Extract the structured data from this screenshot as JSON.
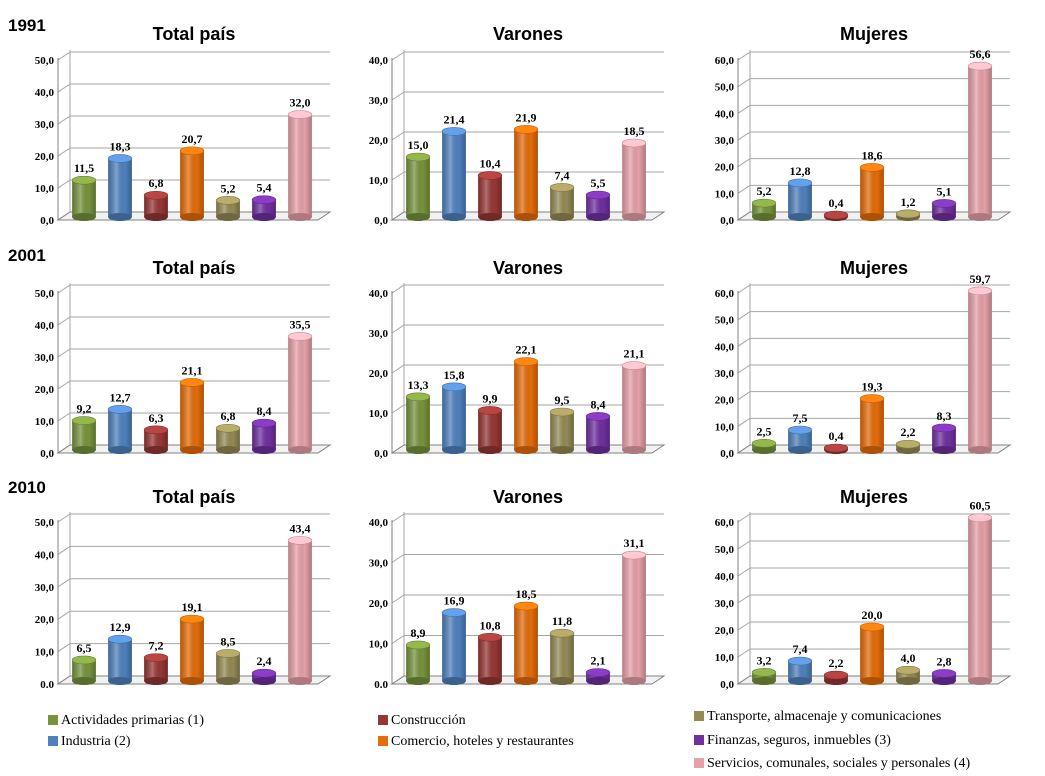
{
  "years": [
    "1991",
    "2001",
    "2010"
  ],
  "colors": {
    "Actividades primarias (1)": "#77933c",
    "Industria (2)": "#4f81bd",
    "Construcción": "#953735",
    "Comercio, hoteles y restaurantes": "#e46c0a",
    "Transporte, almacenaje y comunicaciones": "#948a54",
    "Finanzas, seguros, inmuebles (3)": "#7030a0",
    "Servicios, comunales, sociales y personales (4)": "#e6a0a8"
  },
  "legend": [
    {
      "label": "Actividades primarias  (1)",
      "color": "#77933c"
    },
    {
      "label": "Industria (2)",
      "color": "#4f81bd"
    },
    {
      "label": "Construcción",
      "color": "#953735"
    },
    {
      "label": "Comercio, hoteles y restaurantes",
      "color": "#e46c0a"
    },
    {
      "label": "Transporte, almacenaje y comunicaciones",
      "color": "#948a54"
    },
    {
      "label": "Finanzas, seguros, inmuebles (3)",
      "color": "#7030a0"
    },
    {
      "label": "Servicios, comunales, sociales y personales (4)",
      "color": "#e6a0a8"
    }
  ],
  "chart_data": [
    {
      "type": "bar",
      "year": "1991",
      "title": "Total país",
      "ylim": [
        0,
        50
      ],
      "yticks": [
        "0,0",
        "10,0",
        "20,0",
        "30,0",
        "40,0",
        "50,0"
      ],
      "values": [
        11.5,
        18.3,
        6.8,
        20.7,
        5.2,
        5.4,
        32.0
      ],
      "labels": [
        "11,5",
        "18,3",
        "6,8",
        "20,7",
        "5,2",
        "5,4",
        "32,0"
      ]
    },
    {
      "type": "bar",
      "year": "1991",
      "title": "Varones",
      "ylim": [
        0,
        40
      ],
      "yticks": [
        "0,0",
        "10,0",
        "20,0",
        "30,0",
        "40,0"
      ],
      "values": [
        15.0,
        21.4,
        10.4,
        21.9,
        7.4,
        5.5,
        18.5
      ],
      "labels": [
        "15,0",
        "21,4",
        "10,4",
        "21,9",
        "7,4",
        "5,5",
        "18,5"
      ]
    },
    {
      "type": "bar",
      "year": "1991",
      "title": "Mujeres",
      "ylim": [
        0,
        60
      ],
      "yticks": [
        "0,0",
        "10,0",
        "20,0",
        "30,0",
        "40,0",
        "50,0",
        "60,0"
      ],
      "values": [
        5.2,
        12.8,
        0.4,
        18.6,
        1.2,
        5.1,
        56.6
      ],
      "labels": [
        "5,2",
        "12,8",
        "0,4",
        "18,6",
        "1,2",
        "5,1",
        "56,6"
      ]
    },
    {
      "type": "bar",
      "year": "2001",
      "title": "Total país",
      "ylim": [
        0,
        50
      ],
      "yticks": [
        "0,0",
        "10,0",
        "20,0",
        "30,0",
        "40,0",
        "50,0"
      ],
      "values": [
        9.2,
        12.7,
        6.3,
        21.1,
        6.8,
        8.4,
        35.5
      ],
      "labels": [
        "9,2",
        "12,7",
        "6,3",
        "21,1",
        "6,8",
        "8,4",
        "35,5"
      ]
    },
    {
      "type": "bar",
      "year": "2001",
      "title": "Varones",
      "ylim": [
        0,
        40
      ],
      "yticks": [
        "0,0",
        "10,0",
        "20,0",
        "30,0",
        "40,0"
      ],
      "values": [
        13.3,
        15.8,
        9.9,
        22.1,
        9.5,
        8.4,
        21.1
      ],
      "labels": [
        "13,3",
        "15,8",
        "9,9",
        "22,1",
        "9,5",
        "8,4",
        "21,1"
      ]
    },
    {
      "type": "bar",
      "year": "2001",
      "title": "Mujeres",
      "ylim": [
        0,
        60
      ],
      "yticks": [
        "0,0",
        "10,0",
        "20,0",
        "30,0",
        "40,0",
        "50,0",
        "60,0"
      ],
      "values": [
        2.5,
        7.5,
        0.4,
        19.3,
        2.2,
        8.3,
        59.7
      ],
      "labels": [
        "2,5",
        "7,5",
        "0,4",
        "19,3",
        "2,2",
        "8,3",
        "59,7"
      ]
    },
    {
      "type": "bar",
      "year": "2010",
      "title": "Total país",
      "ylim": [
        0,
        50
      ],
      "yticks": [
        "0.0",
        "10,0",
        "20,0",
        "30,0",
        "40,0",
        "50,0"
      ],
      "values": [
        6.5,
        12.9,
        7.2,
        19.1,
        8.5,
        2.4,
        43.4
      ],
      "labels": [
        "6,5",
        "12,9",
        "7,2",
        "19,1",
        "8,5",
        "2,4",
        "43,4"
      ]
    },
    {
      "type": "bar",
      "year": "2010",
      "title": "Varones",
      "ylim": [
        0,
        40
      ],
      "yticks": [
        "0.0",
        "10,0",
        "20,0",
        "30,0",
        "40,0"
      ],
      "values": [
        8.9,
        16.9,
        10.8,
        18.5,
        11.8,
        2.1,
        31.1
      ],
      "labels": [
        "8,9",
        "16,9",
        "10,8",
        "18,5",
        "11,8",
        "2,1",
        "31,1"
      ]
    },
    {
      "type": "bar",
      "year": "2010",
      "title": "Mujeres",
      "ylim": [
        0,
        60
      ],
      "yticks": [
        "0,0",
        "10,0",
        "20,0",
        "30,0",
        "40,0",
        "50,0",
        "60,0"
      ],
      "values": [
        3.2,
        7.4,
        2.2,
        20.0,
        4.0,
        2.8,
        60.5
      ],
      "labels": [
        "3,2",
        "7,4",
        "2,2",
        "20,0",
        "4,0",
        "2,8",
        "60,5"
      ]
    }
  ]
}
